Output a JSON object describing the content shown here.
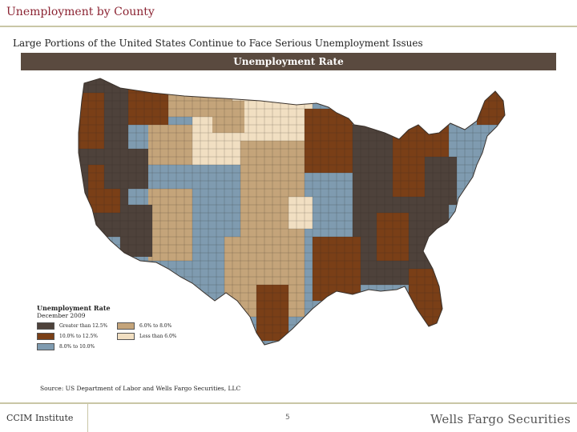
{
  "slide": {
    "title": "Unemployment by County",
    "subtitle": "Large Portions of the United States Continue to Face Serious Unemployment Issues",
    "banner": "Unemployment Rate",
    "source": "Source: US Department of Labor and Wells Fargo Securities, LLC",
    "footer_left": "CCIM Institute",
    "page_number": "5",
    "footer_right": "Wells Fargo Securities"
  },
  "legend": {
    "title": "Unemployment Rate",
    "subtitle": "December 2009",
    "items": [
      {
        "label": "Greater than 12.5%",
        "color": "#4e423b"
      },
      {
        "label": "10.0% to 12.5%",
        "color": "#7a3f17"
      },
      {
        "label": "8.0% to 10.0%",
        "color": "#7f9bb0"
      },
      {
        "label": "6.0% to 8.0%",
        "color": "#c4a47a"
      },
      {
        "label": "Less than 6.0%",
        "color": "#f1dfc2"
      }
    ]
  },
  "colors": {
    "title": "#8b2332",
    "banner_bg": "#5a4a3f",
    "rule": "#c9c6a6"
  }
}
